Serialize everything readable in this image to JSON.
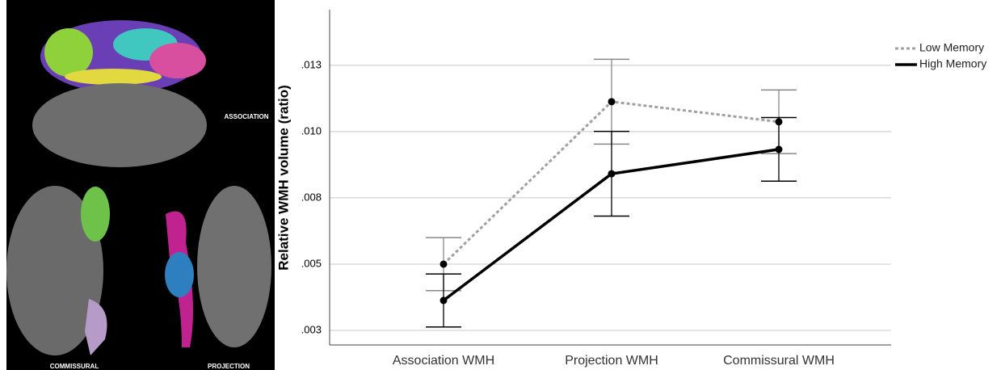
{
  "image_labels": {
    "top": "ASSOCIATION",
    "bottom_left": "COMMISSURAL",
    "bottom_right": "PROJECTION"
  },
  "chart_data": {
    "type": "line",
    "y_label": "Relative WMH volume (ratio)",
    "categories": [
      "Association WMH",
      "Projection WMH",
      "Commissural WMH"
    ],
    "series": [
      {
        "name": "Low Memory",
        "color": "#a0a0a0",
        "style": "dotted",
        "values": [
          0.005,
          0.01113,
          0.01037
        ],
        "errors": [
          0.001,
          0.0016,
          0.0012
        ]
      },
      {
        "name": "High Memory",
        "color": "#000000",
        "style": "solid",
        "values": [
          0.00363,
          0.00841,
          0.00933
        ],
        "errors": [
          0.001,
          0.0016,
          0.0012
        ]
      }
    ],
    "ylim": [
      0.00195,
      0.0146
    ],
    "yticks": [
      {
        "value": 0.0025,
        "label": ".003"
      },
      {
        "value": 0.005,
        "label": ".005"
      },
      {
        "value": 0.0075,
        "label": ".008"
      },
      {
        "value": 0.01,
        "label": ".010"
      },
      {
        "value": 0.0125,
        "label": ".013"
      }
    ],
    "grid": true,
    "legend": "top-right"
  }
}
